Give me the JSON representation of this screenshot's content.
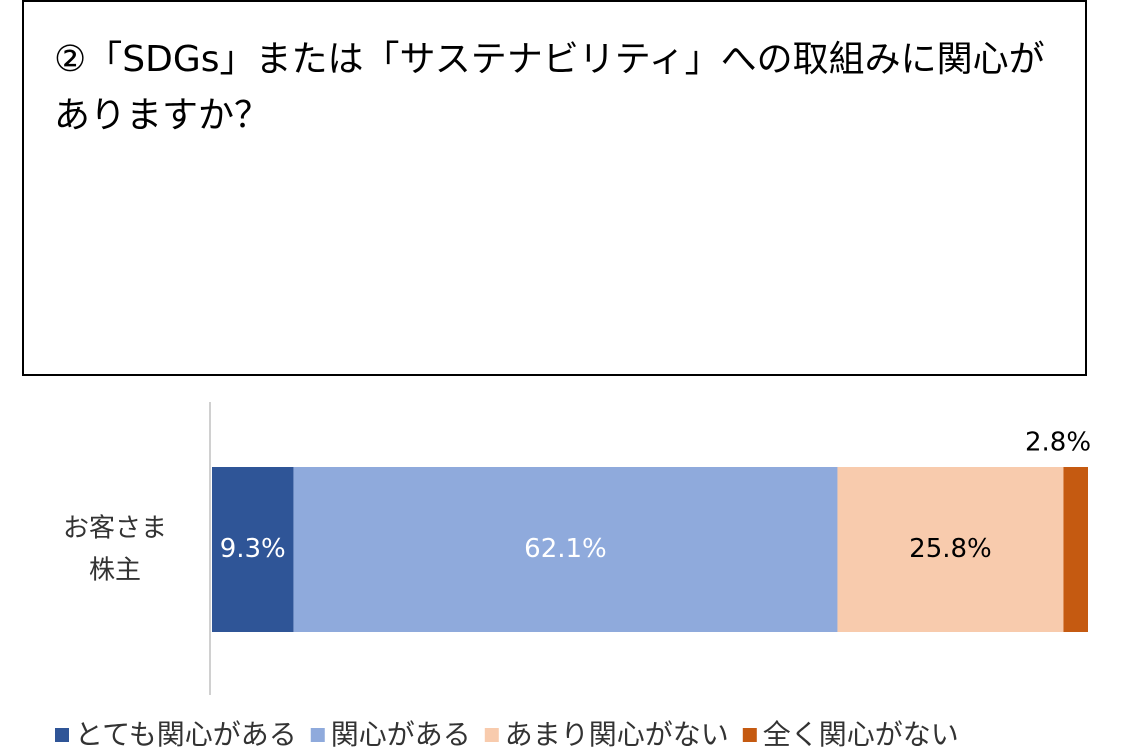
{
  "chart_data": {
    "type": "stacked-bar-horizontal",
    "title": "②「SDGs」または「サステナビリティ」への取組みに関心がありますか？",
    "categories": [
      "お客さま\n株主"
    ],
    "xlim": [
      0,
      100
    ],
    "series": [
      {
        "name": "とても関心がある",
        "color": "#2f5597",
        "values": [
          9.3
        ],
        "value_labels": [
          "9.3%"
        ]
      },
      {
        "name": "関心がある",
        "color": "#8faadc",
        "values": [
          62.1
        ],
        "value_labels": [
          "62.1%"
        ]
      },
      {
        "name": "あまり関心がない",
        "color": "#f8cbad",
        "values": [
          25.8
        ],
        "value_labels": [
          "25.8%"
        ]
      },
      {
        "name": "全く関心がない",
        "color": "#c55a11",
        "values": [
          2.8
        ],
        "value_labels": [
          "2.8%"
        ]
      }
    ]
  }
}
